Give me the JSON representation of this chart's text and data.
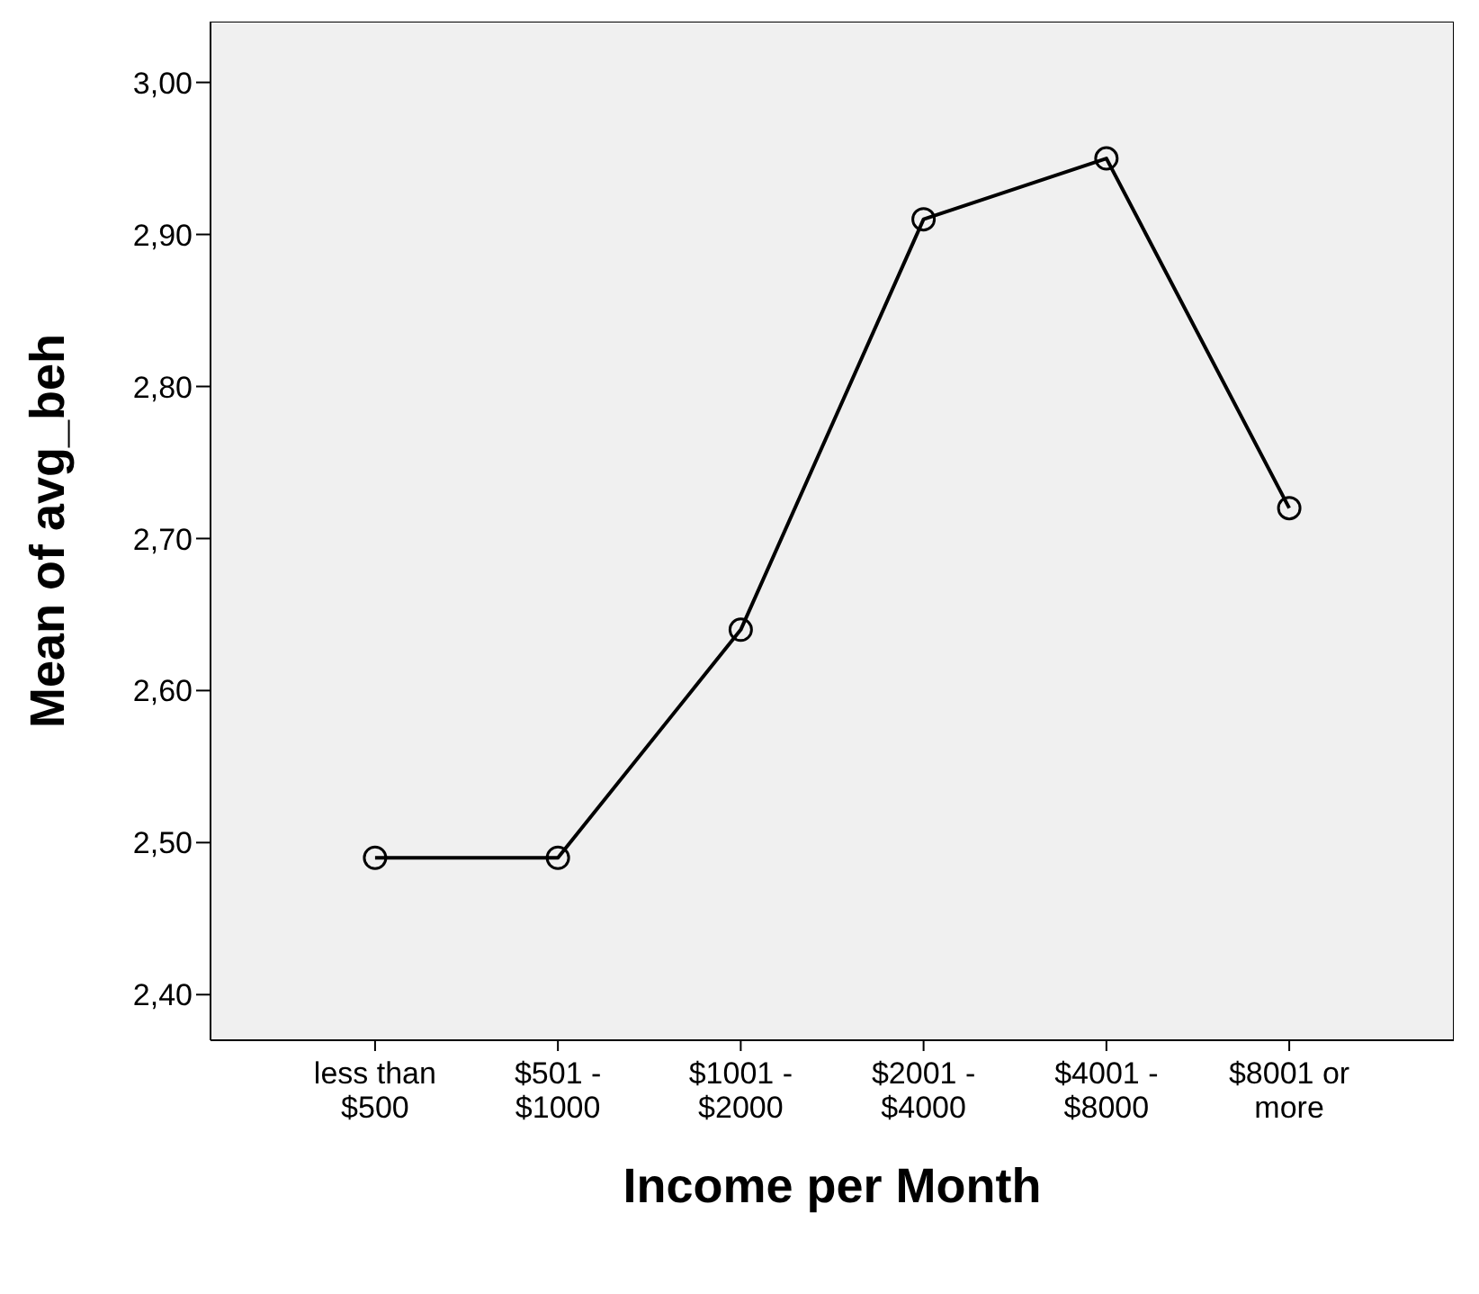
{
  "chart_data": {
    "type": "line",
    "xlabel": "Income per Month",
    "ylabel": "Mean of avg_beh",
    "categories": [
      "less than $500",
      "$501 - $1000",
      "$1001 - $2000",
      "$2001 - $4000",
      "$4001 - $8000",
      "$8001 or more"
    ],
    "series": [
      {
        "color": "#000000",
        "values": [
          2.49,
          2.49,
          2.64,
          2.91,
          2.95,
          2.72
        ]
      }
    ],
    "ylim": [
      2.37,
      3.04
    ],
    "yticks": [
      {
        "value": 2.4,
        "label": "2,40"
      },
      {
        "value": 2.5,
        "label": "2,50"
      },
      {
        "value": 2.6,
        "label": "2,60"
      },
      {
        "value": 2.7,
        "label": "2,70"
      },
      {
        "value": 2.8,
        "label": "2,80"
      },
      {
        "value": 2.9,
        "label": "2,90"
      },
      {
        "value": 3.0,
        "label": "3,00"
      }
    ],
    "grid": false,
    "legend": false,
    "marker": "circle",
    "line_style": "solid"
  }
}
